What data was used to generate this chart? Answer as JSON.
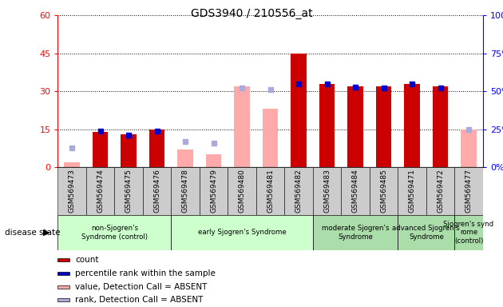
{
  "title": "GDS3940 / 210556_at",
  "samples": [
    "GSM569473",
    "GSM569474",
    "GSM569475",
    "GSM569476",
    "GSM569478",
    "GSM569479",
    "GSM569480",
    "GSM569481",
    "GSM569482",
    "GSM569483",
    "GSM569484",
    "GSM569485",
    "GSM569471",
    "GSM569472",
    "GSM569477"
  ],
  "count_values": [
    0,
    14,
    13,
    15,
    0,
    0,
    0,
    0,
    45,
    33,
    32,
    32,
    33,
    32,
    0
  ],
  "rank_values": [
    0,
    24,
    21,
    24,
    0,
    0,
    0,
    0,
    55,
    55,
    53,
    52,
    55,
    52,
    0
  ],
  "absent_value_values": [
    2,
    0,
    0,
    0,
    7,
    5,
    32,
    23,
    0,
    0,
    0,
    0,
    0,
    0,
    15
  ],
  "absent_rank_values": [
    13,
    0,
    0,
    0,
    17,
    16,
    52,
    51,
    0,
    0,
    0,
    0,
    0,
    0,
    25
  ],
  "groups": [
    {
      "label": "non-Sjogren's\nSyndrome (control)",
      "indices": [
        0,
        1,
        2,
        3
      ],
      "color": "#ccffcc"
    },
    {
      "label": "early Sjogren's Syndrome",
      "indices": [
        4,
        5,
        6,
        7,
        8
      ],
      "color": "#ccffcc"
    },
    {
      "label": "moderate Sjogren's\nSyndrome",
      "indices": [
        9,
        10,
        11
      ],
      "color": "#aaddaa"
    },
    {
      "label": "advanced Sjogren's\nSyndrome",
      "indices": [
        12,
        13
      ],
      "color": "#aaddaa"
    },
    {
      "label": "Sjogren's synd\nrome\n(control)",
      "indices": [
        14
      ],
      "color": "#aaddaa"
    }
  ],
  "ylim_left": [
    0,
    60
  ],
  "ylim_right": [
    0,
    100
  ],
  "yticks_left": [
    0,
    15,
    30,
    45,
    60
  ],
  "ytick_labels_left": [
    "0",
    "15",
    "30",
    "45",
    "60"
  ],
  "yticks_right": [
    0,
    25,
    50,
    75,
    100
  ],
  "ytick_labels_right": [
    "0%",
    "25%",
    "50%",
    "75%",
    "100%"
  ],
  "color_count": "#cc0000",
  "color_rank": "#0000cc",
  "color_absent_value": "#ffaaaa",
  "color_absent_rank": "#aaaadd",
  "disease_state_label": "disease state",
  "legend_items": [
    {
      "color": "#cc0000",
      "label": "count"
    },
    {
      "color": "#0000cc",
      "label": "percentile rank within the sample"
    },
    {
      "color": "#ffaaaa",
      "label": "value, Detection Call = ABSENT"
    },
    {
      "color": "#aaaadd",
      "label": "rank, Detection Call = ABSENT"
    }
  ],
  "tick_label_bg": "#cccccc"
}
